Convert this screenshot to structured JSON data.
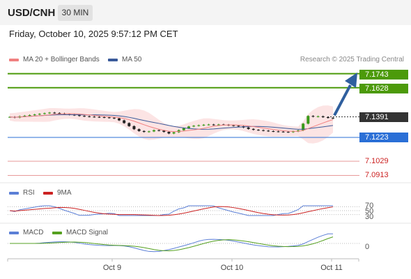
{
  "header": {
    "symbol": "USD/CNH",
    "timeframe": "30 MIN"
  },
  "datetime": "Friday, October 10, 2025 9:57:12 PM CET",
  "legend": {
    "ma20_bb": "MA 20 + Bollinger Bands",
    "ma50": "MA 50",
    "credit": "Research © 2025 Trading Central"
  },
  "price_levels": {
    "r2": "7.1743",
    "r1": "7.1628",
    "last": "7.1391",
    "s1": "7.1223",
    "s2": "7.1029",
    "s3": "7.0913"
  },
  "rsi": {
    "label": "RSI",
    "ma_label": "9MA",
    "levels": [
      "70",
      "50",
      "30"
    ]
  },
  "macd": {
    "label": "MACD",
    "signal_label": "MACD Signal",
    "zero": "0"
  },
  "x_axis": [
    "Oct 9",
    "Oct 10",
    "Oct 11"
  ],
  "colors": {
    "resistance": "#4c9a0a",
    "support": "#2a6fd6",
    "support_minor": "#e89a9a",
    "last_price": "#333333",
    "arrow": "#2f5f9e",
    "candle_up": "#3a9a1a",
    "candle_down": "#222222",
    "ma20": "#f08080",
    "ma50": "#3a5a9a",
    "rsi": "#5b7fd6",
    "rsi_ma": "#cc2222",
    "macd": "#5b7fd6",
    "macd_signal": "#55a020"
  },
  "chart_data": {
    "type": "candlestick",
    "title": "USD/CNH",
    "timeframe": "30 MIN",
    "x_ticks": [
      "Oct 9",
      "Oct 10",
      "Oct 11"
    ],
    "y_range": [
      7.085,
      7.18
    ],
    "close_series": [
      7.139,
      7.1385,
      7.1395,
      7.14,
      7.1405,
      7.141,
      7.1415,
      7.142,
      7.1425,
      7.1422,
      7.1418,
      7.1412,
      7.1408,
      7.1404,
      7.1398,
      7.1395,
      7.1392,
      7.139,
      7.1388,
      7.1386,
      7.1383,
      7.1378,
      7.1362,
      7.134,
      7.1315,
      7.129,
      7.1275,
      7.1268,
      7.1272,
      7.1282,
      7.1278,
      7.1268,
      7.1255,
      7.1265,
      7.1282,
      7.1298,
      7.1312,
      7.1318,
      7.1322,
      7.1326,
      7.1328,
      7.1325,
      7.1328,
      7.1326,
      7.1322,
      7.1318,
      7.1314,
      7.1304,
      7.1292,
      7.1285,
      7.1282,
      7.1278,
      7.1274,
      7.1272,
      7.127,
      7.1268,
      7.1266,
      7.1272,
      7.128,
      7.1335,
      7.1398,
      7.1392,
      7.1395,
      7.1388,
      7.1382,
      7.1378
    ],
    "resistance_levels": [
      7.1743,
      7.1628
    ],
    "support_levels": [
      7.1223,
      7.1029,
      7.0913
    ],
    "last_price": 7.1391,
    "rsi_levels": [
      70,
      50,
      30
    ],
    "macd_zero": 0,
    "series": [
      {
        "name": "MA 20 + Bollinger Bands"
      },
      {
        "name": "MA 50"
      },
      {
        "name": "RSI"
      },
      {
        "name": "9MA"
      },
      {
        "name": "MACD"
      },
      {
        "name": "MACD Signal"
      }
    ]
  }
}
